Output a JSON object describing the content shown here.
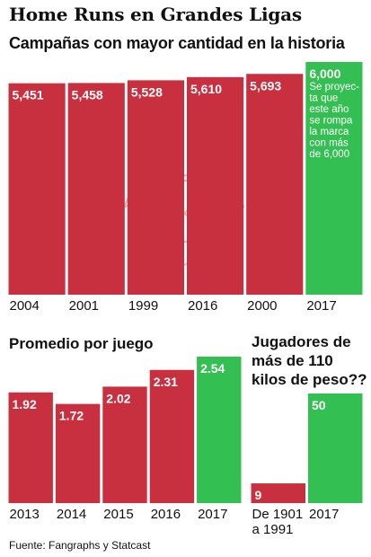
{
  "title": "Home Runs en Grandes Ligas",
  "source": "Fuente: Fangraphs y Statcast",
  "colors": {
    "red": "#c8303f",
    "green": "#34bf52",
    "label_text": "#ffffff",
    "axis_text": "#111111"
  },
  "chart_data": [
    {
      "type": "bar",
      "title": "Campañas con mayor cantidad en la historia",
      "categories": [
        "2004",
        "2001",
        "1999",
        "2016",
        "2000",
        "2017"
      ],
      "values": [
        5451,
        5458,
        5528,
        5610,
        5693,
        6000
      ],
      "value_labels": [
        "5,451",
        "5,458",
        "5,528",
        "5,610",
        "5,693",
        "6,000"
      ],
      "highlight": [
        false,
        false,
        false,
        false,
        false,
        true
      ],
      "annotation": {
        "category": "2017",
        "lines": [
          "Se proyec-",
          "ta que",
          "este año",
          "se rompa",
          "la marca",
          "con más",
          "de 6,000"
        ]
      },
      "ylim": [
        0,
        6000
      ]
    },
    {
      "type": "bar",
      "title": "Promedio por juego",
      "categories": [
        "2013",
        "2014",
        "2015",
        "2016",
        "2017"
      ],
      "values": [
        1.92,
        1.72,
        2.02,
        2.31,
        2.54
      ],
      "value_labels": [
        "1.92",
        "1.72",
        "2.02",
        "2.31",
        "2.54"
      ],
      "highlight": [
        false,
        false,
        false,
        false,
        true
      ],
      "ylim": [
        0,
        2.54
      ]
    },
    {
      "type": "bar",
      "title": "Jugadores de más de 110 kilos de peso??",
      "categories": [
        "De 1901 a 1991",
        "2017"
      ],
      "category_lines": [
        [
          "De 1901",
          "a 1991"
        ],
        [
          "2017"
        ]
      ],
      "values": [
        9,
        50
      ],
      "value_labels": [
        "9",
        "50"
      ],
      "highlight": [
        false,
        true
      ],
      "ylim": [
        0,
        50
      ]
    }
  ]
}
